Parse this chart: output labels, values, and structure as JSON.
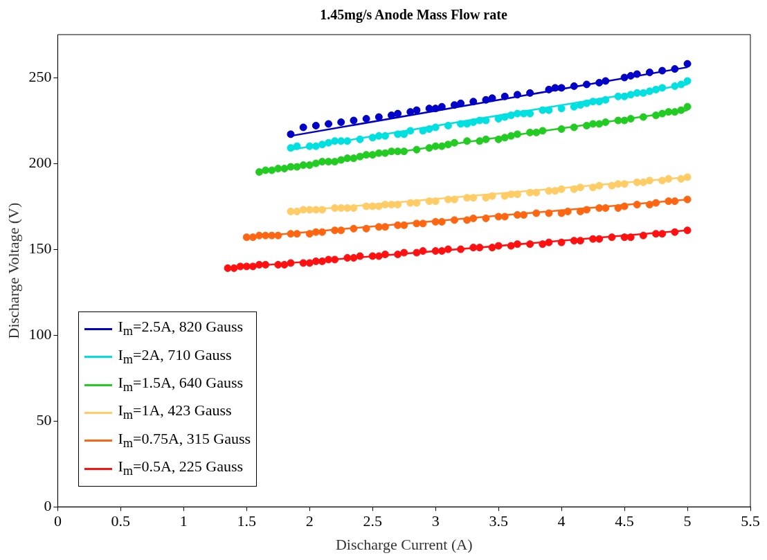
{
  "chart_data": {
    "type": "scatter",
    "title": "1.45mg/s Anode Mass Flow rate",
    "xlabel": "Discharge Current (A)",
    "ylabel": "Discharge Voltage (V)",
    "xlim": [
      0,
      5.5
    ],
    "xticks": [
      0,
      0.5,
      1,
      1.5,
      2,
      2.5,
      3,
      3.5,
      4,
      4.5,
      5,
      5.5
    ],
    "ylim": [
      0,
      275
    ],
    "yticks": [
      0,
      50,
      100,
      150,
      200,
      250
    ],
    "grid": false,
    "legend": "bottom left",
    "series": [
      {
        "name": "I$_{m}$=2.5A, 820 Gauss",
        "type": "line",
        "marker": "none",
        "color": "#0000c8",
        "x": [
          1.85,
          5
        ],
        "values": [
          216,
          256
        ]
      },
      {
        "name": "I$_{m}$=2A, 710 Gauss",
        "type": "line",
        "marker": "none",
        "color": "#00e0e0",
        "x": [
          1.85,
          5
        ],
        "values": [
          208,
          246
        ]
      },
      {
        "name": "I$_{m}$=1.5A, 640 Gauss",
        "type": "line",
        "marker": "none",
        "color": "#22cc22",
        "x": [
          1.6,
          5
        ],
        "values": [
          195,
          231
        ]
      },
      {
        "name": "I$_{m}$=1A, 423 Gauss",
        "type": "line",
        "marker": "none",
        "color": "#ffcc66",
        "x": [
          1.85,
          5
        ],
        "values": [
          172,
          192
        ]
      },
      {
        "name": "I$_{m}$=0.75A, 315 Gauss",
        "type": "line",
        "marker": "none",
        "color": "#ff6611",
        "x": [
          1.5,
          5
        ],
        "values": [
          157,
          179
        ]
      },
      {
        "name": "I$_{m}$=0.5A, 225 Gauss",
        "type": "line",
        "marker": "none",
        "color": "#ff1111",
        "x": [
          1.35,
          5
        ],
        "values": [
          139,
          161
        ]
      },
      {
        "marker": "circle",
        "color": "#0000c8",
        "x": [
          1.85,
          1.95,
          2.05,
          2.15,
          2.25,
          2.35,
          2.45,
          2.55,
          2.65,
          2.7,
          2.8,
          2.85,
          2.95,
          3.0,
          3.05,
          3.15,
          3.2,
          3.3,
          3.4,
          3.45,
          3.55,
          3.65,
          3.75,
          3.9,
          3.95,
          4.0,
          4.1,
          4.2,
          4.3,
          4.35,
          4.5,
          4.55,
          4.6,
          4.7,
          4.8,
          4.9,
          5.0
        ],
        "values": [
          217,
          221,
          222,
          223,
          224,
          225,
          226,
          227,
          228,
          229,
          230,
          231,
          232,
          232,
          233,
          234,
          235,
          236,
          237,
          238,
          239,
          240,
          241,
          243,
          244,
          244,
          245,
          246,
          247,
          248,
          250,
          251,
          252,
          253,
          254,
          255,
          258
        ]
      },
      {
        "marker": "circle",
        "color": "#00e0e0",
        "x": [
          1.85,
          1.9,
          2.0,
          2.05,
          2.1,
          2.15,
          2.2,
          2.25,
          2.3,
          2.4,
          2.5,
          2.55,
          2.6,
          2.7,
          2.75,
          2.8,
          2.9,
          2.95,
          3.0,
          3.1,
          3.2,
          3.25,
          3.3,
          3.35,
          3.4,
          3.5,
          3.55,
          3.6,
          3.65,
          3.7,
          3.75,
          3.85,
          3.9,
          4.0,
          4.1,
          4.15,
          4.2,
          4.25,
          4.3,
          4.35,
          4.45,
          4.5,
          4.55,
          4.6,
          4.65,
          4.7,
          4.75,
          4.8,
          4.9,
          4.95,
          5.0
        ],
        "values": [
          209,
          210,
          210,
          210,
          211,
          212,
          213,
          213,
          213,
          214,
          215,
          216,
          216,
          217,
          217,
          219,
          219,
          220,
          221,
          222,
          223,
          223,
          224,
          225,
          225,
          226,
          227,
          228,
          229,
          229,
          229,
          231,
          231,
          232,
          233,
          234,
          235,
          236,
          236,
          237,
          239,
          239,
          240,
          241,
          241,
          242,
          243,
          244,
          245,
          246,
          248
        ]
      },
      {
        "marker": "circle",
        "color": "#22cc22",
        "x": [
          1.6,
          1.65,
          1.7,
          1.75,
          1.8,
          1.85,
          1.9,
          1.95,
          2.0,
          2.05,
          2.1,
          2.15,
          2.2,
          2.25,
          2.3,
          2.35,
          2.4,
          2.45,
          2.5,
          2.55,
          2.6,
          2.65,
          2.7,
          2.75,
          2.85,
          2.95,
          3.0,
          3.05,
          3.1,
          3.15,
          3.25,
          3.35,
          3.4,
          3.5,
          3.55,
          3.6,
          3.65,
          3.75,
          3.8,
          3.85,
          4.0,
          4.1,
          4.2,
          4.25,
          4.3,
          4.35,
          4.45,
          4.5,
          4.55,
          4.65,
          4.75,
          4.8,
          4.85,
          4.9,
          4.95,
          5.0
        ],
        "values": [
          195,
          196,
          196,
          197,
          197,
          198,
          198,
          199,
          199,
          200,
          201,
          201,
          201,
          202,
          203,
          203,
          204,
          205,
          205,
          206,
          206,
          207,
          207,
          207,
          208,
          209,
          210,
          210,
          211,
          212,
          213,
          213,
          214,
          214,
          215,
          216,
          217,
          218,
          218,
          219,
          220,
          221,
          222,
          223,
          223,
          224,
          225,
          225,
          226,
          227,
          228,
          229,
          230,
          230,
          231,
          233
        ]
      },
      {
        "marker": "circle",
        "color": "#ffcc66",
        "x": [
          1.85,
          1.9,
          1.95,
          2.0,
          2.05,
          2.1,
          2.2,
          2.25,
          2.3,
          2.35,
          2.45,
          2.5,
          2.55,
          2.6,
          2.65,
          2.7,
          2.8,
          2.85,
          2.95,
          3.0,
          3.1,
          3.15,
          3.25,
          3.3,
          3.4,
          3.45,
          3.55,
          3.6,
          3.65,
          3.75,
          3.8,
          3.9,
          3.95,
          4.0,
          4.1,
          4.15,
          4.25,
          4.3,
          4.4,
          4.45,
          4.5,
          4.6,
          4.65,
          4.7,
          4.8,
          4.85,
          4.95,
          5.0
        ],
        "values": [
          172,
          172,
          173,
          173,
          173,
          173,
          174,
          174,
          174,
          174,
          175,
          175,
          175,
          176,
          176,
          176,
          177,
          177,
          178,
          178,
          179,
          179,
          180,
          180,
          180,
          181,
          181,
          182,
          182,
          183,
          183,
          184,
          184,
          185,
          185,
          186,
          186,
          187,
          187,
          188,
          188,
          189,
          189,
          190,
          190,
          191,
          191,
          192
        ]
      },
      {
        "marker": "circle",
        "color": "#ff6611",
        "x": [
          1.5,
          1.55,
          1.6,
          1.65,
          1.7,
          1.75,
          1.85,
          1.9,
          2.0,
          2.05,
          2.1,
          2.2,
          2.25,
          2.35,
          2.45,
          2.55,
          2.6,
          2.7,
          2.75,
          2.85,
          2.9,
          3.0,
          3.05,
          3.15,
          3.25,
          3.3,
          3.4,
          3.5,
          3.55,
          3.65,
          3.7,
          3.8,
          3.9,
          4.0,
          4.05,
          4.15,
          4.2,
          4.3,
          4.35,
          4.45,
          4.5,
          4.6,
          4.7,
          4.75,
          4.85,
          4.9,
          5.0
        ],
        "values": [
          157,
          157,
          158,
          158,
          158,
          158,
          159,
          159,
          159,
          160,
          160,
          161,
          161,
          162,
          162,
          163,
          163,
          164,
          164,
          165,
          165,
          166,
          166,
          167,
          167,
          168,
          168,
          169,
          169,
          170,
          170,
          171,
          171,
          171,
          172,
          172,
          173,
          174,
          174,
          174,
          175,
          176,
          176,
          177,
          178,
          178,
          179
        ]
      },
      {
        "marker": "circle",
        "color": "#ff1111",
        "x": [
          1.35,
          1.4,
          1.45,
          1.5,
          1.55,
          1.6,
          1.65,
          1.75,
          1.8,
          1.85,
          1.95,
          2.0,
          2.05,
          2.1,
          2.15,
          2.2,
          2.3,
          2.35,
          2.4,
          2.5,
          2.55,
          2.6,
          2.7,
          2.75,
          2.85,
          2.9,
          3.0,
          3.05,
          3.1,
          3.2,
          3.3,
          3.35,
          3.45,
          3.5,
          3.6,
          3.65,
          3.75,
          3.85,
          3.9,
          4.0,
          4.1,
          4.15,
          4.25,
          4.3,
          4.4,
          4.5,
          4.55,
          4.65,
          4.75,
          4.8,
          4.9,
          5.0
        ],
        "values": [
          139,
          139,
          140,
          140,
          140,
          141,
          141,
          141,
          141,
          142,
          142,
          142,
          143,
          143,
          144,
          144,
          145,
          145,
          146,
          146,
          146,
          147,
          147,
          148,
          148,
          149,
          149,
          149,
          150,
          150,
          151,
          151,
          151,
          152,
          152,
          153,
          153,
          153,
          154,
          154,
          155,
          155,
          156,
          156,
          157,
          157,
          157,
          158,
          159,
          159,
          160,
          161
        ]
      }
    ]
  }
}
